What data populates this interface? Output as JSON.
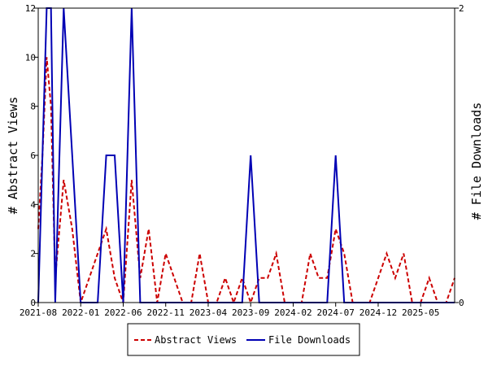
{
  "chart_data": {
    "type": "line",
    "ylabel_left": "# Abstract Views",
    "ylabel_right": "# File Downloads",
    "ylim_left": [
      0,
      12
    ],
    "ylim_right": [
      0,
      2
    ],
    "yticks_left": [
      "0",
      "2",
      "4",
      "6",
      "8",
      "10",
      "12"
    ],
    "yticks_right": [
      "0",
      "2"
    ],
    "x_tick_labels": [
      "2021-08",
      "2022-01",
      "2022-06",
      "2022-11",
      "2023-04",
      "2023-09",
      "2024-02",
      "2024-07",
      "2024-12",
      "2025-05"
    ],
    "x_tick_index": [
      0,
      5,
      10,
      15,
      20,
      25,
      30,
      35,
      40,
      45
    ],
    "legend_position": "bottom",
    "colors": {
      "abstract_views": "#cc0000",
      "file_downloads": "#0000b4"
    },
    "series": [
      {
        "name": "Abstract Views",
        "axis": "left",
        "style": "dashed",
        "points": [
          [
            0,
            3
          ],
          [
            0.5,
            6
          ],
          [
            1,
            10
          ],
          [
            1.5,
            8
          ],
          [
            2,
            1
          ],
          [
            3,
            5
          ],
          [
            4,
            3
          ],
          [
            5,
            0
          ],
          [
            6,
            1
          ],
          [
            7,
            2
          ],
          [
            8,
            3
          ],
          [
            9,
            1
          ],
          [
            10,
            0
          ],
          [
            11,
            5
          ],
          [
            12,
            1
          ],
          [
            13,
            3
          ],
          [
            14,
            0
          ],
          [
            15,
            2
          ],
          [
            16,
            1
          ],
          [
            17,
            0
          ],
          [
            18,
            0
          ],
          [
            19,
            2
          ],
          [
            20,
            0
          ],
          [
            21,
            0
          ],
          [
            22,
            1
          ],
          [
            23,
            0
          ],
          [
            24,
            1
          ],
          [
            25,
            0
          ],
          [
            26,
            1
          ],
          [
            27,
            1
          ],
          [
            28,
            2
          ],
          [
            29,
            0
          ],
          [
            30,
            0
          ],
          [
            31,
            0
          ],
          [
            32,
            2
          ],
          [
            33,
            1
          ],
          [
            34,
            1
          ],
          [
            35,
            3
          ],
          [
            36,
            2
          ],
          [
            37,
            0
          ],
          [
            38,
            0
          ],
          [
            39,
            0
          ],
          [
            40,
            1
          ],
          [
            41,
            2
          ],
          [
            42,
            1
          ],
          [
            43,
            2
          ],
          [
            44,
            0
          ],
          [
            45,
            0
          ],
          [
            46,
            1
          ],
          [
            47,
            0
          ],
          [
            48,
            0
          ],
          [
            49,
            1
          ]
        ]
      },
      {
        "name": "File Downloads",
        "axis": "right",
        "style": "solid",
        "points": [
          [
            0,
            0
          ],
          [
            0.5,
            1
          ],
          [
            1,
            2
          ],
          [
            1.5,
            2
          ],
          [
            2,
            0
          ],
          [
            3,
            2
          ],
          [
            4,
            1
          ],
          [
            5,
            0
          ],
          [
            6,
            0
          ],
          [
            7,
            0
          ],
          [
            8,
            1
          ],
          [
            9,
            1
          ],
          [
            10,
            0
          ],
          [
            11,
            2
          ],
          [
            12,
            0
          ],
          [
            13,
            0
          ],
          [
            14,
            0
          ],
          [
            15,
            0
          ],
          [
            16,
            0
          ],
          [
            17,
            0
          ],
          [
            18,
            0
          ],
          [
            19,
            0
          ],
          [
            20,
            0
          ],
          [
            21,
            0
          ],
          [
            22,
            0
          ],
          [
            23,
            0
          ],
          [
            24,
            0
          ],
          [
            25,
            1
          ],
          [
            26,
            0
          ],
          [
            27,
            0
          ],
          [
            28,
            0
          ],
          [
            29,
            0
          ],
          [
            30,
            0
          ],
          [
            31,
            0
          ],
          [
            32,
            0
          ],
          [
            33,
            0
          ],
          [
            34,
            0
          ],
          [
            35,
            1
          ],
          [
            36,
            0
          ],
          [
            37,
            0
          ],
          [
            38,
            0
          ],
          [
            39,
            0
          ],
          [
            40,
            0
          ],
          [
            41,
            0
          ],
          [
            42,
            0
          ],
          [
            43,
            0
          ],
          [
            44,
            0
          ],
          [
            45,
            0
          ],
          [
            46,
            0
          ],
          [
            47,
            0
          ],
          [
            48,
            0
          ],
          [
            49,
            0
          ]
        ]
      }
    ]
  }
}
